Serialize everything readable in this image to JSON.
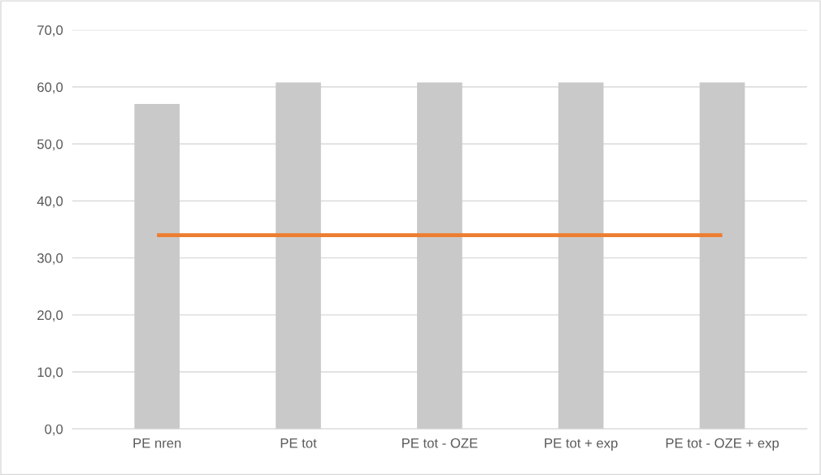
{
  "chart_data": {
    "type": "bar",
    "categories": [
      "PE nren",
      "PE tot",
      "PE tot - OZE",
      "PE tot + exp",
      "PE tot - OZE + exp"
    ],
    "series": [
      {
        "color": "#c9c9c9",
        "values": [
          57.0,
          60.8,
          60.8,
          60.8,
          60.8
        ]
      },
      {
        "type": "line",
        "color": "#ed7d31",
        "values": [
          34.0,
          34.0,
          34.0,
          34.0,
          34.0
        ]
      }
    ],
    "ylim": [
      0,
      70
    ],
    "yticks": [
      {
        "value": 0,
        "label": "0,0"
      },
      {
        "value": 10,
        "label": "10,0"
      },
      {
        "value": 20,
        "label": "20,0"
      },
      {
        "value": 30,
        "label": "30,0"
      },
      {
        "value": 40,
        "label": "40,0"
      },
      {
        "value": 50,
        "label": "50,0"
      },
      {
        "value": 60,
        "label": "60,0"
      },
      {
        "value": 70,
        "label": "70,0"
      }
    ],
    "grid": "y",
    "marker": "none",
    "line_style": "solid"
  }
}
